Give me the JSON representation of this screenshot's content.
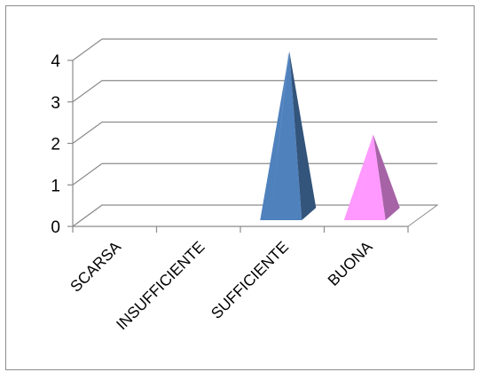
{
  "chart_data": {
    "type": "bar",
    "bar_shape": "pyramid",
    "three_d": true,
    "title": "",
    "xlabel": "",
    "ylabel": "",
    "categories": [
      "SCARSA",
      "INSUFFICIENTE",
      "SUFFICIENTE",
      "BUONA"
    ],
    "values": [
      0,
      0,
      4,
      2
    ],
    "ylim": [
      0,
      4
    ],
    "yticks": [
      "0",
      "1",
      "2",
      "3",
      "4"
    ],
    "grid": true,
    "legend": "none",
    "colors": [
      "#4F81BD",
      "#4F81BD",
      "#4F81BD",
      "#FF99FF"
    ]
  }
}
